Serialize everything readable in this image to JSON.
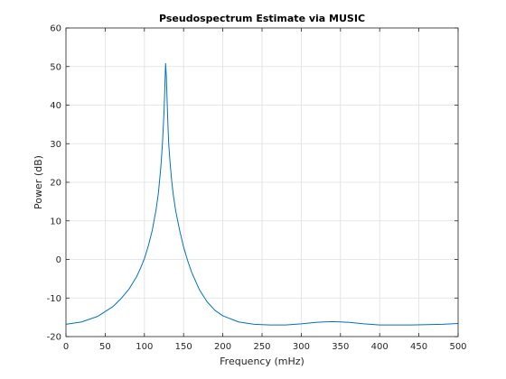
{
  "chart_data": {
    "type": "line",
    "title": "Pseudospectrum Estimate via MUSIC",
    "xlabel": "Frequency (mHz)",
    "ylabel": "Power (dB)",
    "xlim": [
      0,
      500
    ],
    "ylim": [
      -20,
      60
    ],
    "xticks": [
      "0",
      "50",
      "100",
      "150",
      "200",
      "250",
      "300",
      "350",
      "400",
      "450",
      "500"
    ],
    "yticks": [
      "-20",
      "-10",
      "0",
      "10",
      "20",
      "30",
      "40",
      "50",
      "60"
    ],
    "grid": true,
    "legend": "none",
    "colors": {
      "line": "#0072BD",
      "grid": "#dfdfdf",
      "axis": "#262626"
    },
    "series": [
      {
        "x": [
          0,
          20,
          40,
          60,
          70,
          80,
          90,
          95,
          100,
          105,
          110,
          115,
          118,
          121,
          123,
          125,
          126,
          127,
          128,
          129,
          130,
          131,
          133,
          135,
          137,
          140,
          145,
          150,
          155,
          160,
          170,
          180,
          190,
          200,
          220,
          240,
          260,
          280,
          300,
          320,
          340,
          360,
          380,
          400,
          420,
          440,
          460,
          480,
          500
        ],
        "y": [
          -16.8,
          -16.2,
          -14.8,
          -12.2,
          -10.2,
          -7.8,
          -4.5,
          -2.3,
          0.2,
          3.5,
          7.5,
          13,
          17.5,
          24,
          30,
          38,
          44,
          50.8,
          47.5,
          41,
          35,
          30,
          24.5,
          20,
          16.5,
          12.5,
          7.5,
          3.2,
          -0.2,
          -3.2,
          -7.8,
          -11,
          -13.2,
          -14.6,
          -16.2,
          -16.8,
          -17,
          -17,
          -16.7,
          -16.3,
          -16.1,
          -16.3,
          -16.7,
          -17,
          -17,
          -17,
          -16.9,
          -16.8,
          -16.6
        ]
      }
    ]
  }
}
